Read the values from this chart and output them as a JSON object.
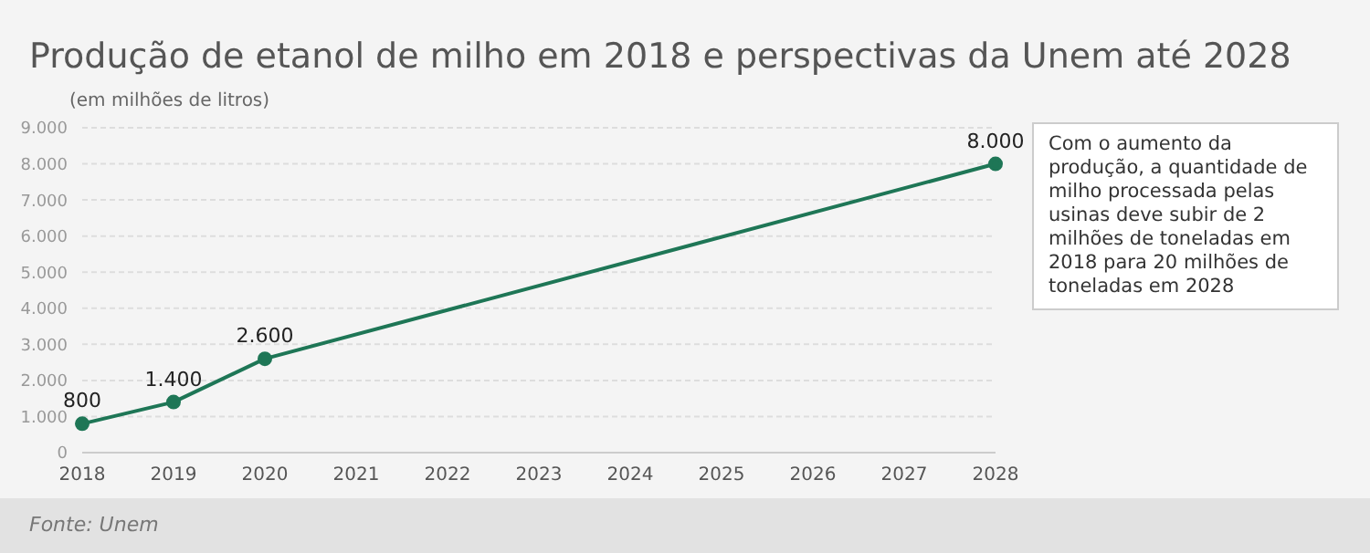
{
  "chart_data": {
    "type": "line",
    "title": "Produção de etanol de milho em 2018 e perspectivas da Unem até 2028",
    "ylabel": "(em milhões de litros)",
    "categories": [
      "2018",
      "2019",
      "2020",
      "2021",
      "2022",
      "2023",
      "2024",
      "2025",
      "2026",
      "2027",
      "2028"
    ],
    "series": [
      {
        "color": "#1e7656",
        "values": [
          800,
          1400,
          2600,
          null,
          null,
          null,
          null,
          null,
          null,
          null,
          8000
        ],
        "value_labels": [
          "800",
          "1.400",
          "2.600",
          null,
          null,
          null,
          null,
          null,
          null,
          null,
          "8.000"
        ]
      }
    ],
    "ylim": [
      0,
      9000
    ],
    "yticks": [
      0,
      {
        "value": 1000,
        "label": "1.000"
      },
      {
        "value": 2000,
        "label": "2.000"
      },
      {
        "value": 3000,
        "label": "3.000"
      },
      {
        "value": 4000,
        "label": "4.000"
      },
      {
        "value": 5000,
        "label": "5.000"
      },
      {
        "value": 6000,
        "label": "6.000"
      },
      {
        "value": 7000,
        "label": "7.000"
      },
      {
        "value": 8000,
        "label": "8.000"
      },
      {
        "value": 9000,
        "label": "9.000"
      }
    ],
    "grid": "y",
    "marker": "circle",
    "legend": false,
    "annotations": [
      "Com o aumento da produção, a quantidade de milho processada pelas usinas deve subir de 2 milhões de toneladas em 2018 para 20 milhões de toneladas em 2028",
      "Fonte: Unem"
    ]
  }
}
